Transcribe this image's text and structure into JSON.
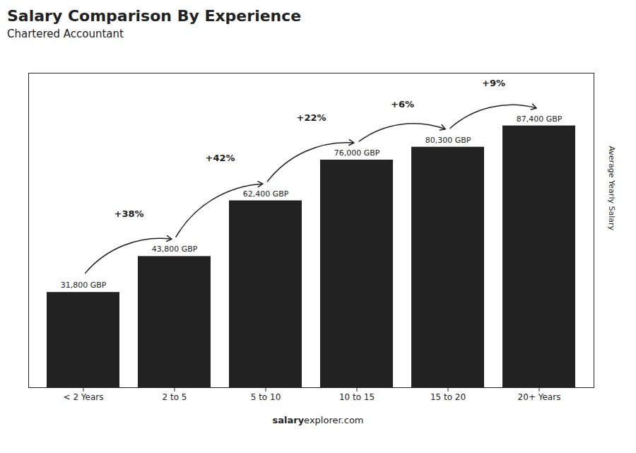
{
  "chart_data": {
    "type": "bar",
    "title": "Salary Comparison By Experience",
    "subtitle": "Chartered Accountant",
    "ylabel": "Average Yearly Salary",
    "categories": [
      "< 2 Years",
      "2 to 5",
      "5 to 10",
      "10 to 15",
      "15 to 20",
      "20+ Years"
    ],
    "values": [
      31800,
      43800,
      62400,
      76000,
      80300,
      87400
    ],
    "value_labels": [
      "31,800 GBP",
      "43,800 GBP",
      "62,400 GBP",
      "76,000 GBP",
      "80,300 GBP",
      "87,400 GBP"
    ],
    "data_labels": true,
    "ylim": [
      0,
      105000
    ],
    "tick_labels": "x",
    "annotations": [
      {
        "from": "< 2 Years",
        "to": "2 to 5",
        "text": "+38%"
      },
      {
        "from": "2 to 5",
        "to": "5 to 10",
        "text": "+42%"
      },
      {
        "from": "5 to 10",
        "to": "10 to 15",
        "text": "+22%"
      },
      {
        "from": "10 to 15",
        "to": "15 to 20",
        "text": "+6%"
      },
      {
        "from": "15 to 20",
        "to": "20+ Years",
        "text": "+9%"
      }
    ],
    "footer": [
      "salary",
      "explorer.com"
    ]
  }
}
